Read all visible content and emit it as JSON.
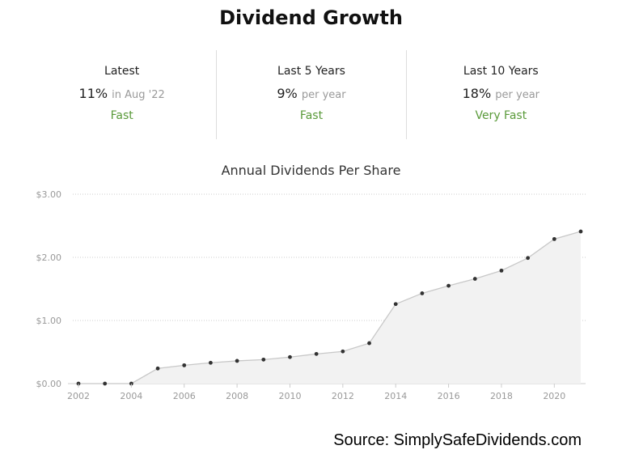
{
  "header": {
    "title": "Dividend Growth"
  },
  "stats": [
    {
      "label": "Latest",
      "value": "11%",
      "suffix": "in Aug '22",
      "rating": "Fast"
    },
    {
      "label": "Last 5 Years",
      "value": "9%",
      "suffix": "per year",
      "rating": "Fast"
    },
    {
      "label": "Last 10 Years",
      "value": "18%",
      "suffix": "per year",
      "rating": "Very Fast"
    }
  ],
  "colors": {
    "rating": "#5a9a3a",
    "line": "#c8c8c8",
    "area": "#f2f2f2",
    "marker": "#333333",
    "grid": "#cccccc"
  },
  "chart_data": {
    "type": "area",
    "title": "Annual Dividends Per Share",
    "x": [
      2002,
      2003,
      2004,
      2005,
      2006,
      2007,
      2008,
      2009,
      2010,
      2011,
      2012,
      2013,
      2014,
      2015,
      2016,
      2017,
      2018,
      2019,
      2020,
      2021
    ],
    "values": [
      0.0,
      0.0,
      0.0,
      0.24,
      0.29,
      0.33,
      0.36,
      0.38,
      0.42,
      0.47,
      0.51,
      0.64,
      1.26,
      1.43,
      1.55,
      1.66,
      1.79,
      1.99,
      2.29,
      2.41
    ],
    "xticks": [
      "2002",
      "2004",
      "2006",
      "2008",
      "2010",
      "2012",
      "2014",
      "2016",
      "2018",
      "2020"
    ],
    "yticks": [
      "$0.00",
      "$1.00",
      "$2.00",
      "$3.00"
    ],
    "ylim": [
      0,
      3
    ],
    "grid": "horizontal dotted"
  },
  "footer": {
    "source": "Source: SimplySafeDividends.com"
  }
}
